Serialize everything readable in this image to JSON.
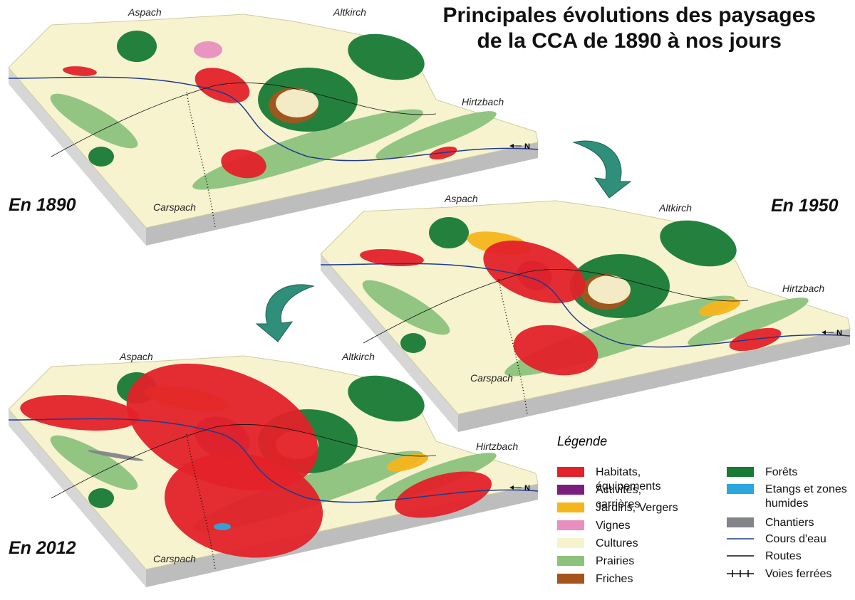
{
  "title": [
    "Principales évolutions des paysages",
    "de la CCA de 1890 à nos jours"
  ],
  "maps": [
    {
      "year": "En 1890",
      "places": [
        "Aspach",
        "Altkirch",
        "Hirtzbach",
        "Carspach"
      ],
      "north": "N"
    },
    {
      "year": "En 1950",
      "places": [
        "Aspach",
        "Altkirch",
        "Hirtzbach",
        "Carspach"
      ],
      "north": "N"
    },
    {
      "year": "En 2012",
      "places": [
        "Aspach",
        "Altkirch",
        "Hirtzbach",
        "Carspach"
      ],
      "north": "N"
    }
  ],
  "legend": {
    "title": "Légende",
    "items": [
      {
        "label": "Habitats, équipements",
        "symbol": "fill",
        "color": "#e32229"
      },
      {
        "label": "Activités, carrières",
        "symbol": "fill",
        "color": "#7b1f7f"
      },
      {
        "label": "Jardins, Vergers",
        "symbol": "fill",
        "color": "#f5b51c"
      },
      {
        "label": "Vignes",
        "symbol": "fill",
        "color": "#e88fc0"
      },
      {
        "label": "Cultures",
        "symbol": "fill",
        "color": "#f7f3cf"
      },
      {
        "label": "Prairies",
        "symbol": "fill",
        "color": "#8cc27c"
      },
      {
        "label": "Friches",
        "symbol": "fill",
        "color": "#a5541c"
      },
      {
        "label": "Forêts",
        "symbol": "fill",
        "color": "#177a35"
      },
      {
        "label": "Etangs et zones humides",
        "symbol": "fill",
        "color": "#2aa7dd"
      },
      {
        "label": "Chantiers",
        "symbol": "fill",
        "color": "#838488"
      },
      {
        "label": "Cours d'eau",
        "symbol": "line",
        "color": "#1f3b8c"
      },
      {
        "label": "Routes",
        "symbol": "line",
        "color": "#111111"
      },
      {
        "label": "Voies ferrées",
        "symbol": "rail",
        "color": "#111111"
      }
    ]
  }
}
